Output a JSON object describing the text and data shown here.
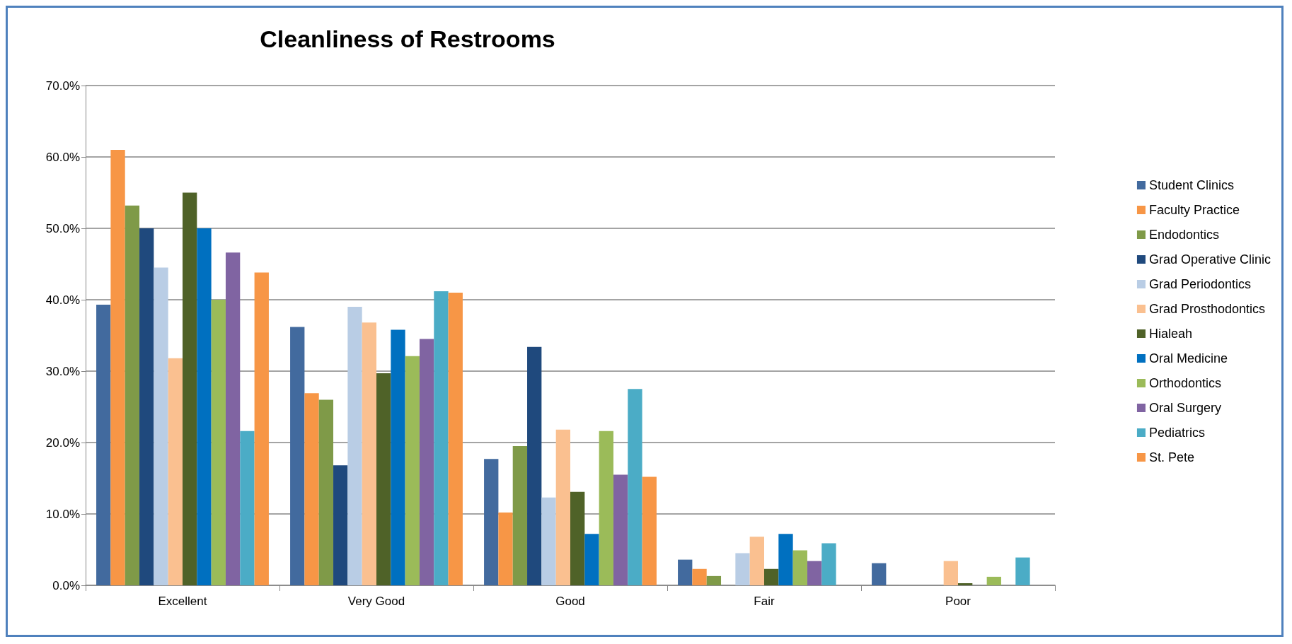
{
  "chart_data": {
    "type": "bar",
    "title": "Cleanliness of Restrooms",
    "categories": [
      "Excellent",
      "Very Good",
      "Good",
      "Fair",
      "Poor"
    ],
    "series": [
      {
        "name": "Student Clinics",
        "color": "#426a9e",
        "values": [
          39.3,
          36.2,
          17.7,
          3.6,
          3.1
        ]
      },
      {
        "name": "Faculty Practice",
        "color": "#f79646",
        "values": [
          61.0,
          26.9,
          10.2,
          2.3,
          0
        ]
      },
      {
        "name": "Endodontics",
        "color": "#7f9a48",
        "values": [
          53.2,
          26.0,
          19.5,
          1.3,
          0
        ]
      },
      {
        "name": "Grad Operative Clinic",
        "color": "#1f497d",
        "values": [
          50.0,
          16.8,
          33.4,
          0,
          0
        ]
      },
      {
        "name": "Grad Periodontics",
        "color": "#b9cde5",
        "values": [
          44.5,
          39.0,
          12.3,
          4.5,
          0
        ]
      },
      {
        "name": "Grad Prosthodontics",
        "color": "#fac090",
        "values": [
          31.8,
          36.8,
          21.8,
          6.8,
          3.4
        ]
      },
      {
        "name": "Hialeah",
        "color": "#4f6228",
        "values": [
          55.0,
          29.7,
          13.1,
          2.3,
          0.3
        ]
      },
      {
        "name": "Oral Medicine",
        "color": "#0070c0",
        "values": [
          50.0,
          35.8,
          7.2,
          7.2,
          0
        ]
      },
      {
        "name": "Orthodontics",
        "color": "#9bbb59",
        "values": [
          40.0,
          32.1,
          21.6,
          4.9,
          1.2
        ]
      },
      {
        "name": "Oral Surgery",
        "color": "#8064a2",
        "values": [
          46.6,
          34.5,
          15.5,
          3.4,
          0
        ]
      },
      {
        "name": "Pediatrics",
        "color": "#4bacc6",
        "values": [
          21.6,
          41.2,
          27.5,
          5.9,
          3.9
        ]
      },
      {
        "name": "St. Pete",
        "color": "#f79646",
        "values": [
          43.8,
          41.0,
          15.2,
          0,
          0
        ]
      }
    ],
    "ylim": [
      0,
      70
    ],
    "yticks": [
      {
        "value": 0,
        "label": "0.0%"
      },
      {
        "value": 10,
        "label": "10.0%"
      },
      {
        "value": 20,
        "label": "20.0%"
      },
      {
        "value": 30,
        "label": "30.0%"
      },
      {
        "value": 40,
        "label": "40.0%"
      },
      {
        "value": 50,
        "label": "50.0%"
      },
      {
        "value": 60,
        "label": "60.0%"
      },
      {
        "value": 70,
        "label": "70.0%"
      }
    ],
    "grid": "y",
    "legend": "right"
  }
}
